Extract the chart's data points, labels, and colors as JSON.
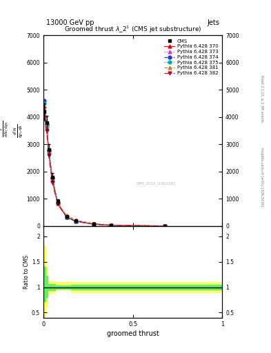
{
  "title": "Groomed thrust $\\lambda$_2$^1$ (CMS jet substructure)",
  "top_left_label": "13000 GeV pp",
  "top_right_label": "Jets",
  "right_label_main": "Rivet 3.1.10, ≥ 2.3M events",
  "right_label_sub": "mcplots.cern.ch [arXiv:1306.3436]",
  "watermark": "CMS_2021_I1920187",
  "xlabel": "groomed thrust",
  "ylabel_main": "1 / mathrm{d}N d p_T  mathrm{d}^2N / d p_T d lambda",
  "ylabel_ratio": "Ratio to CMS",
  "cms_x": [
    0.006,
    0.018,
    0.03,
    0.05,
    0.08,
    0.13,
    0.18,
    0.28,
    0.38,
    0.68
  ],
  "cms_y": [
    4200,
    3800,
    2800,
    1800,
    900,
    350,
    200,
    80,
    30,
    5
  ],
  "cms_yerr": [
    300,
    250,
    200,
    150,
    80,
    30,
    20,
    10,
    5,
    2
  ],
  "pythia_x": [
    0.006,
    0.018,
    0.03,
    0.05,
    0.08,
    0.13,
    0.18,
    0.28,
    0.38,
    0.68
  ],
  "p370_y": [
    4400,
    3700,
    2750,
    1750,
    850,
    330,
    185,
    75,
    28,
    4
  ],
  "p370_color": "#e8000b",
  "p370_label": "Pythia 6.428 370",
  "p370_marker": "^",
  "p370_ls": "-",
  "p373_y": [
    4300,
    3650,
    2700,
    1700,
    840,
    325,
    182,
    73,
    27,
    4
  ],
  "p373_color": "#cc44cc",
  "p373_label": "Pythia 6.428 373",
  "p373_marker": "^",
  "p373_ls": ":",
  "p374_y": [
    4600,
    3750,
    2780,
    1780,
    860,
    340,
    188,
    76,
    29,
    4.5
  ],
  "p374_color": "#3333cc",
  "p374_label": "Pythia 6.428 374",
  "p374_marker": "o",
  "p374_ls": "--",
  "p375_y": [
    4500,
    3700,
    2760,
    1760,
    855,
    335,
    186,
    74,
    28,
    4.2
  ],
  "p375_color": "#00aaaa",
  "p375_label": "Pythia 6.428 375",
  "p375_marker": "o",
  "p375_ls": ":",
  "p381_y": [
    4100,
    3600,
    2680,
    1680,
    830,
    400,
    220,
    95,
    40,
    8
  ],
  "p381_color": "#bb8833",
  "p381_label": "Pythia 6.428 381",
  "p381_marker": "^",
  "p381_ls": "--",
  "p382_y": [
    4000,
    3500,
    2600,
    1600,
    800,
    320,
    175,
    70,
    25,
    3.5
  ],
  "p382_color": "#cc0033",
  "p382_label": "Pythia 6.428 382",
  "p382_marker": "v",
  "p382_ls": "-.",
  "ratio_yellow_x": [
    0.0,
    0.012,
    0.012,
    0.024,
    0.024,
    0.065,
    0.065,
    0.155,
    0.155,
    1.0
  ],
  "ratio_yellow_lo": [
    0.42,
    0.42,
    0.62,
    0.62,
    0.88,
    0.88,
    0.95,
    0.95,
    0.9,
    0.9
  ],
  "ratio_yellow_hi": [
    1.8,
    1.8,
    1.42,
    1.42,
    1.12,
    1.12,
    1.1,
    1.1,
    1.1,
    1.1
  ],
  "ratio_green_x": [
    0.0,
    0.012,
    0.012,
    0.024,
    0.024,
    0.065,
    0.065,
    0.155,
    0.155,
    1.0
  ],
  "ratio_green_lo": [
    0.72,
    0.72,
    0.8,
    0.8,
    0.94,
    0.94,
    0.97,
    0.97,
    0.95,
    0.95
  ],
  "ratio_green_hi": [
    1.4,
    1.4,
    1.22,
    1.22,
    1.06,
    1.06,
    1.03,
    1.03,
    1.05,
    1.05
  ],
  "ylim_main": [
    0,
    7000
  ],
  "ylim_ratio": [
    0.4,
    2.2
  ],
  "xlim": [
    0.0,
    1.0
  ],
  "yticks_main": [
    0,
    1000,
    2000,
    3000,
    4000,
    5000,
    6000,
    7000
  ],
  "ytick_labels_main": [
    "0",
    "1000",
    "2000",
    "3000",
    "4000",
    "5000",
    "6000",
    "7000"
  ],
  "yticks_ratio": [
    0.5,
    1.0,
    1.5,
    2.0
  ],
  "ytick_labels_ratio": [
    "0.5",
    "1",
    "1.5",
    "2"
  ]
}
